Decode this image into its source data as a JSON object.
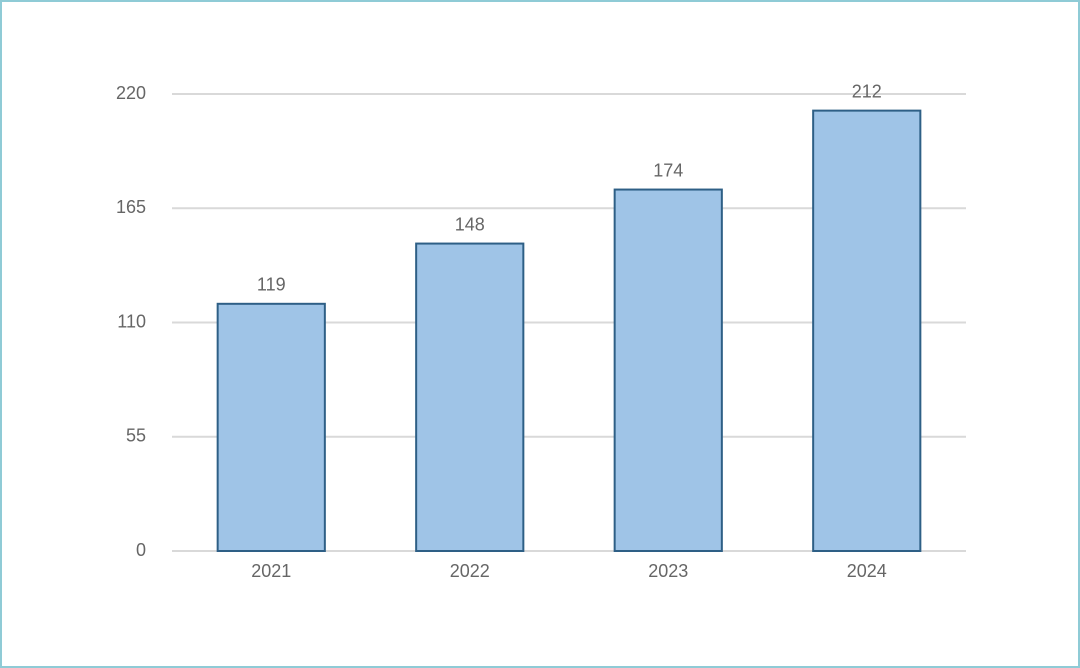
{
  "chart_data": {
    "type": "bar",
    "categories": [
      "2021",
      "2022",
      "2023",
      "2024"
    ],
    "values": [
      119,
      148,
      174,
      212
    ],
    "color": "#9fc4e7",
    "edge_color": "#2e5f86",
    "ylim": [
      0,
      220
    ],
    "yticks": [
      0,
      55,
      110,
      165,
      220
    ],
    "grid": true
  }
}
